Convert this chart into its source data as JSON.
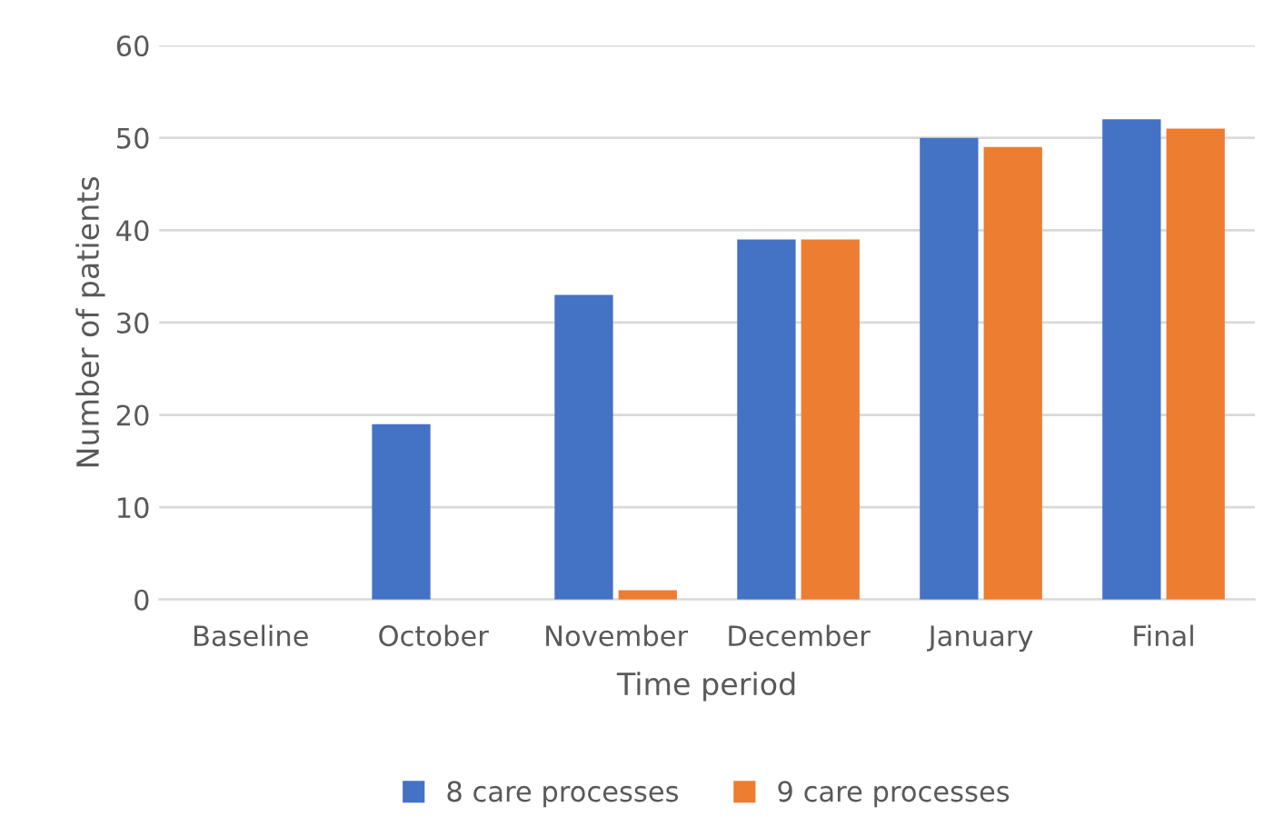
{
  "chart_data": {
    "type": "bar",
    "xlabel": "Time period",
    "ylabel": "Number of patients",
    "categories": [
      "Baseline",
      "October",
      "November",
      "December",
      "January",
      "Final"
    ],
    "series": [
      {
        "name": "8 care processes",
        "color": "#4472c4",
        "values": [
          0,
          19,
          33,
          39,
          50,
          52
        ]
      },
      {
        "name": "9 care processes",
        "color": "#ed7d31",
        "values": [
          0,
          0,
          1,
          39,
          49,
          51
        ]
      }
    ],
    "ylim": [
      0,
      60
    ],
    "yticks": [
      0,
      10,
      20,
      30,
      40,
      50,
      60
    ],
    "grid": "y",
    "legend": "bottom"
  }
}
